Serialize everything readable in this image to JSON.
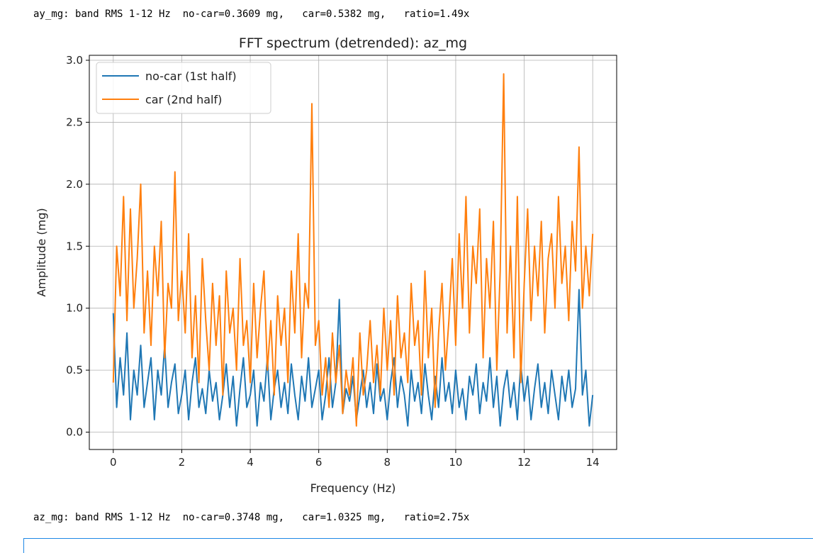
{
  "output_lines": [
    "ay_mg: band RMS 1-12 Hz  no-car=0.3609 mg,   car=0.5382 mg,   ratio=1.49x",
    "az_mg: band RMS 1-12 Hz  no-car=0.3748 mg,   car=1.0325 mg,   ratio=2.75x"
  ],
  "chart_data": {
    "type": "line",
    "title": "FFT spectrum (detrended): az_mg",
    "xlabel": "Frequency (Hz)",
    "ylabel": "Amplitude (mg)",
    "xlim": [
      -0.7,
      14.7
    ],
    "ylim": [
      -0.14,
      3.04
    ],
    "xticks": [
      0,
      2,
      4,
      6,
      8,
      10,
      12,
      14
    ],
    "xtick_labels": [
      "0",
      "2",
      "4",
      "6",
      "8",
      "10",
      "12",
      "14"
    ],
    "yticks": [
      0.0,
      0.5,
      1.0,
      1.5,
      2.0,
      2.5,
      3.0
    ],
    "ytick_labels": [
      "0.0",
      "0.5",
      "1.0",
      "1.5",
      "2.0",
      "2.5",
      "3.0"
    ],
    "grid": true,
    "legend_position": "top-left",
    "x_start": 0,
    "x_step": 0.1,
    "series": [
      {
        "name": "no-car (1st half)",
        "color": "#1f77b4",
        "values": [
          0.96,
          0.2,
          0.6,
          0.3,
          0.8,
          0.1,
          0.5,
          0.3,
          0.7,
          0.2,
          0.4,
          0.6,
          0.1,
          0.5,
          0.3,
          0.7,
          0.2,
          0.4,
          0.55,
          0.15,
          0.3,
          0.5,
          0.1,
          0.4,
          0.6,
          0.2,
          0.35,
          0.15,
          0.5,
          0.25,
          0.4,
          0.1,
          0.3,
          0.55,
          0.2,
          0.45,
          0.05,
          0.35,
          0.6,
          0.2,
          0.3,
          0.5,
          0.05,
          0.4,
          0.25,
          0.6,
          0.1,
          0.35,
          0.5,
          0.2,
          0.4,
          0.15,
          0.55,
          0.3,
          0.1,
          0.45,
          0.25,
          0.6,
          0.2,
          0.35,
          0.5,
          0.1,
          0.3,
          0.6,
          0.2,
          0.4,
          1.07,
          0.15,
          0.35,
          0.25,
          0.45,
          0.1,
          0.3,
          0.5,
          0.2,
          0.4,
          0.15,
          0.55,
          0.25,
          0.35,
          0.1,
          0.4,
          0.6,
          0.2,
          0.45,
          0.3,
          0.05,
          0.5,
          0.25,
          0.4,
          0.15,
          0.55,
          0.3,
          0.1,
          0.45,
          0.2,
          0.6,
          0.25,
          0.4,
          0.15,
          0.5,
          0.2,
          0.35,
          0.1,
          0.45,
          0.3,
          0.55,
          0.15,
          0.4,
          0.25,
          0.6,
          0.2,
          0.45,
          0.05,
          0.35,
          0.5,
          0.2,
          0.4,
          0.1,
          0.55,
          0.25,
          0.45,
          0.1,
          0.35,
          0.55,
          0.2,
          0.4,
          0.15,
          0.5,
          0.3,
          0.1,
          0.45,
          0.25,
          0.5,
          0.2,
          0.35,
          1.15,
          0.3,
          0.5,
          0.05,
          0.3
        ]
      },
      {
        "name": "car (2nd half)",
        "color": "#ff7f0e",
        "values": [
          0.4,
          1.5,
          1.1,
          1.9,
          0.9,
          1.8,
          1.0,
          1.4,
          2.0,
          0.8,
          1.3,
          0.7,
          1.5,
          1.1,
          1.7,
          0.6,
          1.2,
          1.0,
          2.1,
          0.9,
          1.3,
          0.8,
          1.6,
          0.6,
          1.1,
          0.4,
          1.4,
          0.9,
          0.5,
          1.2,
          0.7,
          1.1,
          0.3,
          1.3,
          0.8,
          1.0,
          0.5,
          1.4,
          0.7,
          0.9,
          0.4,
          1.2,
          0.6,
          1.0,
          1.3,
          0.5,
          0.9,
          0.3,
          1.1,
          0.7,
          1.0,
          0.4,
          1.3,
          0.8,
          1.6,
          0.6,
          1.2,
          1.0,
          2.65,
          0.7,
          0.9,
          0.3,
          0.6,
          0.2,
          0.8,
          0.4,
          0.7,
          0.15,
          0.5,
          0.3,
          0.6,
          0.05,
          0.8,
          0.3,
          0.5,
          0.9,
          0.4,
          0.7,
          0.3,
          1.0,
          0.5,
          0.9,
          0.3,
          1.1,
          0.6,
          0.8,
          0.4,
          1.2,
          0.7,
          0.9,
          0.3,
          1.3,
          0.6,
          1.0,
          0.2,
          0.8,
          1.2,
          0.5,
          0.9,
          1.4,
          0.7,
          1.6,
          1.0,
          1.9,
          0.8,
          1.5,
          1.2,
          1.8,
          0.6,
          1.4,
          1.0,
          1.7,
          0.5,
          1.3,
          2.89,
          0.8,
          1.5,
          0.6,
          1.9,
          0.4,
          1.2,
          1.8,
          0.9,
          1.5,
          1.1,
          1.7,
          0.8,
          1.4,
          1.6,
          1.0,
          1.9,
          1.2,
          1.5,
          0.9,
          1.7,
          1.3,
          2.3,
          1.0,
          1.5,
          1.1,
          1.6
        ]
      }
    ]
  }
}
